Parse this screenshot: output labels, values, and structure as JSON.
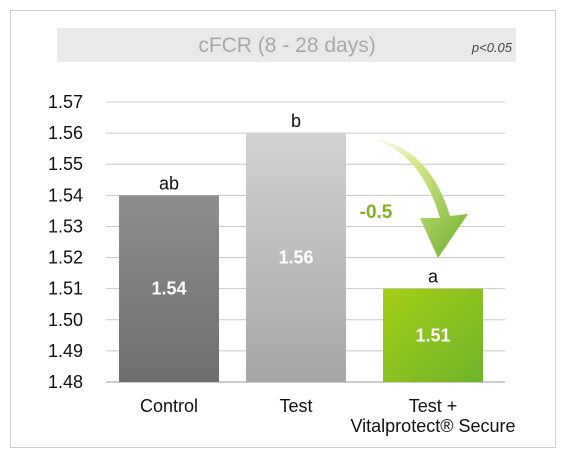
{
  "chart_data": {
    "type": "bar",
    "title": "cFCR (8 - 28 days)",
    "significance_note": "p<0.05",
    "categories": [
      "Control",
      "Test",
      "Test +\nVitalprotect® Secure"
    ],
    "values": [
      1.54,
      1.56,
      1.51
    ],
    "value_labels": [
      "1.54",
      "1.56",
      "1.51"
    ],
    "significance_letters": [
      "ab",
      "b",
      "a"
    ],
    "bar_colors": [
      "#7f7f7f",
      "#b3b3b3",
      "#8dc21f"
    ],
    "yticks": [
      "1.57",
      "1.56",
      "1.55",
      "1.54",
      "1.53",
      "1.52",
      "1.51",
      "1.50",
      "1.49",
      "1.48"
    ],
    "ylim": [
      1.48,
      1.57
    ],
    "grid": true,
    "annotation": {
      "text": "-0.5",
      "color": "#7ab51d"
    },
    "xlabel": "",
    "ylabel": ""
  }
}
